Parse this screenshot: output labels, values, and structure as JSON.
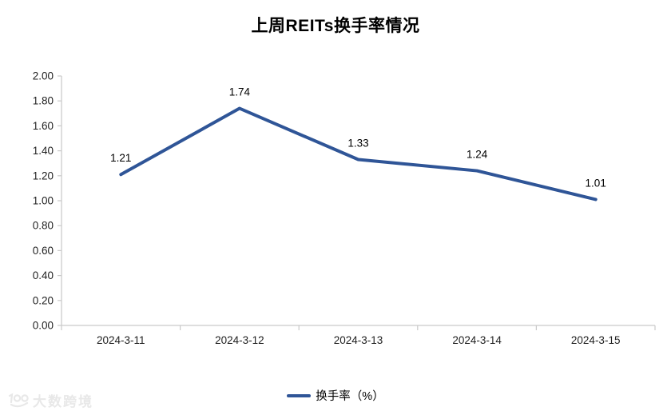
{
  "title": "上周REITs换手率情况",
  "chart_data": {
    "type": "line",
    "title": "上周REITs换手率情况",
    "categories": [
      "2024-3-11",
      "2024-3-12",
      "2024-3-13",
      "2024-3-14",
      "2024-3-15"
    ],
    "series": [
      {
        "name": "换手率（%）",
        "values": [
          1.21,
          1.74,
          1.33,
          1.24,
          1.01
        ]
      }
    ],
    "xlabel": "",
    "ylabel": "",
    "ylim": [
      0,
      2
    ],
    "ytick_step": 0.2,
    "ytick_decimals": 2,
    "grid": false,
    "markers": false,
    "data_labels": true,
    "legend_position": "bottom",
    "line_color": "#2F5597",
    "axis_color": "#c9c9c9",
    "tick_label_color": "#1f1f1f",
    "data_label_color": "#000000"
  },
  "legend": {
    "label": "换手率（%）"
  },
  "watermark": {
    "text": "大数跨境"
  }
}
